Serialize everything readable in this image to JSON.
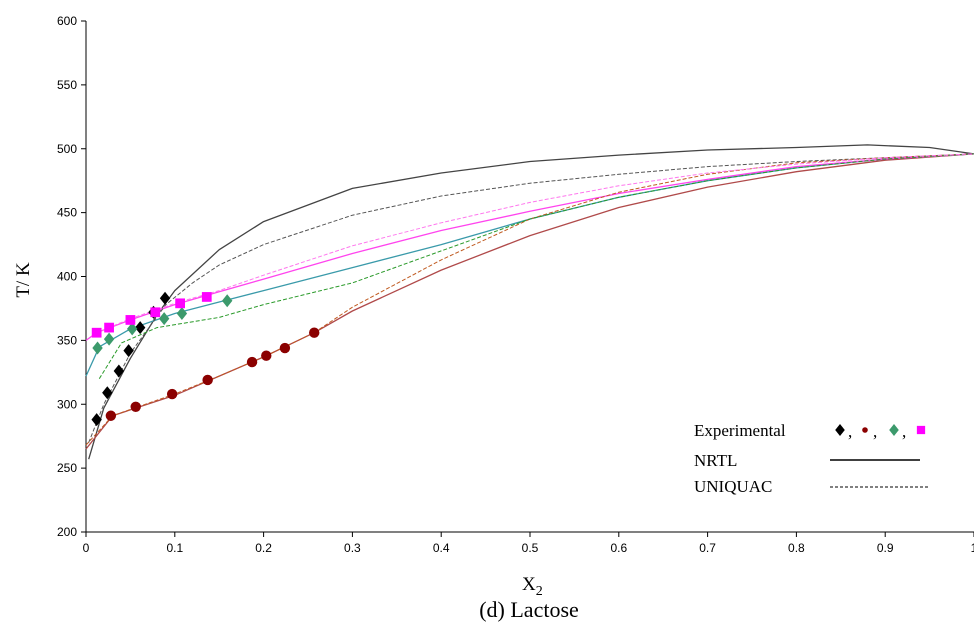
{
  "chart_data": {
    "type": "line",
    "caption": "(d) Lactose",
    "xlabel": "X",
    "xlabel_sub": "2",
    "ylabel": "T/ K",
    "xlim": [
      0,
      1
    ],
    "ylim": [
      200,
      600
    ],
    "x_ticks": [
      "0",
      "0.1",
      "0.2",
      "0.3",
      "0.4",
      "0.5",
      "0.6",
      "0.7",
      "0.8",
      "0.9",
      "1"
    ],
    "y_ticks": [
      "200",
      "250",
      "300",
      "350",
      "400",
      "450",
      "500",
      "550",
      "600"
    ],
    "grid": false,
    "legend": {
      "placement": "bottom-right",
      "experimental_label": "Experimental",
      "separator": ",",
      "nrtl_label": "NRTL",
      "uniquac_label": "UNIQUAC"
    },
    "colors": {
      "black": "#000000",
      "darkred": "#8b0000",
      "green": "#3c9a6c",
      "magenta": "#ff00ff"
    },
    "experimental": [
      {
        "color": "#000000",
        "marker": "diamond",
        "points": [
          [
            0.012,
            288
          ],
          [
            0.024,
            309
          ],
          [
            0.037,
            326
          ],
          [
            0.048,
            342
          ],
          [
            0.061,
            360
          ],
          [
            0.076,
            372
          ],
          [
            0.089,
            383
          ]
        ]
      },
      {
        "color": "#8b0000",
        "marker": "circle",
        "points": [
          [
            0.028,
            291
          ],
          [
            0.056,
            298
          ],
          [
            0.097,
            308
          ],
          [
            0.137,
            319
          ],
          [
            0.187,
            333
          ],
          [
            0.203,
            338
          ],
          [
            0.224,
            344
          ],
          [
            0.257,
            356
          ]
        ]
      },
      {
        "color": "#3c9a6c",
        "marker": "diamond",
        "points": [
          [
            0.013,
            344
          ],
          [
            0.026,
            351
          ],
          [
            0.052,
            359
          ],
          [
            0.088,
            367
          ],
          [
            0.108,
            371
          ],
          [
            0.159,
            381
          ]
        ]
      },
      {
        "color": "#ff00ff",
        "marker": "square",
        "points": [
          [
            0.012,
            356
          ],
          [
            0.026,
            360
          ],
          [
            0.05,
            366
          ],
          [
            0.078,
            372
          ],
          [
            0.106,
            379
          ],
          [
            0.136,
            384
          ]
        ]
      }
    ],
    "nrtl": [
      {
        "color": "#444444",
        "points": [
          [
            0.003,
            257
          ],
          [
            0.02,
            297
          ],
          [
            0.05,
            336
          ],
          [
            0.08,
            370
          ],
          [
            0.1,
            389
          ],
          [
            0.15,
            421
          ],
          [
            0.2,
            443
          ],
          [
            0.3,
            469
          ],
          [
            0.4,
            481
          ],
          [
            0.5,
            490
          ],
          [
            0.6,
            495
          ],
          [
            0.7,
            499
          ],
          [
            0.8,
            501
          ],
          [
            0.88,
            503
          ],
          [
            0.95,
            501
          ],
          [
            1.0,
            496
          ]
        ]
      },
      {
        "color": "#b04a4a",
        "points": [
          [
            0.0,
            265
          ],
          [
            0.03,
            291
          ],
          [
            0.1,
            307
          ],
          [
            0.15,
            322
          ],
          [
            0.2,
            337
          ],
          [
            0.257,
            356
          ],
          [
            0.3,
            373
          ],
          [
            0.4,
            405
          ],
          [
            0.5,
            432
          ],
          [
            0.6,
            454
          ],
          [
            0.7,
            470
          ],
          [
            0.8,
            482
          ],
          [
            0.9,
            491
          ],
          [
            1.0,
            496
          ]
        ]
      },
      {
        "color": "#3a9aaa",
        "points": [
          [
            0.0,
            322
          ],
          [
            0.015,
            345
          ],
          [
            0.05,
            359
          ],
          [
            0.1,
            371
          ],
          [
            0.15,
            380
          ],
          [
            0.2,
            389
          ],
          [
            0.3,
            407
          ],
          [
            0.4,
            425
          ],
          [
            0.5,
            445
          ],
          [
            0.6,
            462
          ],
          [
            0.7,
            475
          ],
          [
            0.8,
            485
          ],
          [
            0.9,
            492
          ],
          [
            1.0,
            496
          ]
        ]
      },
      {
        "color": "#ff44ee",
        "points": [
          [
            0.0,
            350
          ],
          [
            0.012,
            356
          ],
          [
            0.05,
            366
          ],
          [
            0.1,
            378
          ],
          [
            0.15,
            388
          ],
          [
            0.2,
            398
          ],
          [
            0.3,
            418
          ],
          [
            0.4,
            436
          ],
          [
            0.5,
            451
          ],
          [
            0.6,
            465
          ],
          [
            0.7,
            476
          ],
          [
            0.8,
            486
          ],
          [
            0.9,
            492
          ],
          [
            1.0,
            496
          ]
        ]
      }
    ],
    "uniquac": [
      {
        "color": "#555555",
        "points": [
          [
            0.003,
            270
          ],
          [
            0.02,
            300
          ],
          [
            0.05,
            340
          ],
          [
            0.09,
            378
          ],
          [
            0.12,
            395
          ],
          [
            0.15,
            409
          ],
          [
            0.2,
            425
          ],
          [
            0.3,
            448
          ],
          [
            0.4,
            463
          ],
          [
            0.5,
            473
          ],
          [
            0.6,
            480
          ],
          [
            0.7,
            486
          ],
          [
            0.8,
            490
          ],
          [
            0.9,
            493
          ],
          [
            1.0,
            496
          ]
        ]
      },
      {
        "color": "#c05a20",
        "points": [
          [
            0.0,
            268
          ],
          [
            0.03,
            291
          ],
          [
            0.1,
            308
          ],
          [
            0.15,
            322
          ],
          [
            0.2,
            337
          ],
          [
            0.257,
            356
          ],
          [
            0.3,
            376
          ],
          [
            0.4,
            413
          ],
          [
            0.5,
            445
          ],
          [
            0.6,
            466
          ],
          [
            0.7,
            480
          ],
          [
            0.8,
            489
          ],
          [
            0.9,
            493
          ],
          [
            1.0,
            496
          ]
        ]
      },
      {
        "color": "#2a9a2a",
        "points": [
          [
            0.015,
            320
          ],
          [
            0.04,
            348
          ],
          [
            0.08,
            360
          ],
          [
            0.15,
            368
          ],
          [
            0.2,
            378
          ],
          [
            0.3,
            395
          ],
          [
            0.4,
            420
          ],
          [
            0.5,
            445
          ],
          [
            0.6,
            462
          ],
          [
            0.7,
            475
          ],
          [
            0.8,
            485
          ],
          [
            0.9,
            492
          ],
          [
            1.0,
            496
          ]
        ]
      },
      {
        "color": "#ff77ee",
        "points": [
          [
            0.012,
            356
          ],
          [
            0.05,
            367
          ],
          [
            0.1,
            379
          ],
          [
            0.15,
            389
          ],
          [
            0.2,
            401
          ],
          [
            0.3,
            424
          ],
          [
            0.4,
            442
          ],
          [
            0.5,
            458
          ],
          [
            0.6,
            471
          ],
          [
            0.7,
            481
          ],
          [
            0.8,
            488
          ],
          [
            0.9,
            493
          ],
          [
            1.0,
            496
          ]
        ]
      }
    ]
  }
}
